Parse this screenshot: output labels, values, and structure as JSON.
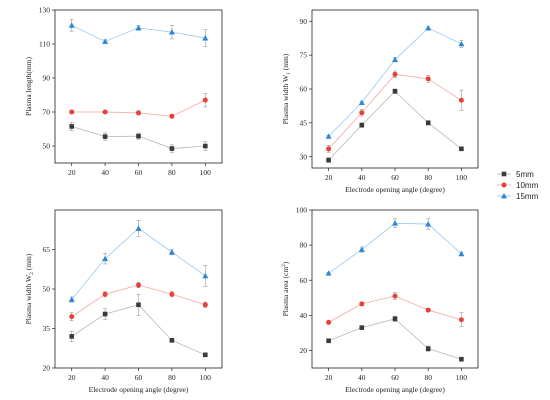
{
  "legend": {
    "items": [
      {
        "label": "5mm",
        "color": "#3a3a3a",
        "marker": "square"
      },
      {
        "label": "10mm",
        "color": "#e8413a",
        "marker": "circle"
      },
      {
        "label": "15mm",
        "color": "#2a86d9",
        "marker": "triangle"
      }
    ]
  },
  "chart_data": [
    {
      "type": "line",
      "xlabel": "",
      "ylabel": "Plasma length(mm)",
      "ylabel_sub": "",
      "ylabel_sup": "",
      "ylabel_suffix": "",
      "x": [
        20,
        40,
        60,
        80,
        100
      ],
      "xlim": [
        10,
        110
      ],
      "ylim": [
        40,
        130
      ],
      "yticks": [
        50,
        70,
        90,
        110,
        130
      ],
      "series": [
        {
          "name": "5mm",
          "values": [
            61.5,
            55.5,
            55.8,
            48.5,
            50.0
          ],
          "errors": [
            2.5,
            2.2,
            1.8,
            2.2,
            2.5
          ]
        },
        {
          "name": "10mm",
          "values": [
            70.0,
            70.0,
            69.5,
            67.5,
            77.0
          ],
          "errors": [
            1.0,
            1.0,
            1.2,
            1.0,
            4.0
          ]
        },
        {
          "name": "15mm",
          "values": [
            121.0,
            111.5,
            119.5,
            117.0,
            113.5
          ],
          "errors": [
            3.5,
            1.0,
            1.5,
            4.0,
            5.0
          ]
        }
      ]
    },
    {
      "type": "line",
      "xlabel": "Electrode opening angle (degree)",
      "ylabel": "Plasma width W",
      "ylabel_sub": "1",
      "ylabel_sup": "",
      "ylabel_suffix": " (mm)",
      "x": [
        20,
        40,
        60,
        80,
        100
      ],
      "xlim": [
        10,
        110
      ],
      "ylim": [
        25,
        95
      ],
      "yticks": [
        30,
        45,
        60,
        75,
        90
      ],
      "series": [
        {
          "name": "5mm",
          "values": [
            28.5,
            44.0,
            59.0,
            45.0,
            33.5
          ],
          "errors": [
            1.0,
            1.0,
            1.0,
            1.0,
            0.5
          ]
        },
        {
          "name": "10mm",
          "values": [
            33.5,
            49.5,
            66.5,
            64.5,
            55.0
          ],
          "errors": [
            1.5,
            1.5,
            1.5,
            1.5,
            4.5
          ]
        },
        {
          "name": "15mm",
          "values": [
            39.0,
            54.0,
            73.0,
            87.0,
            80.0
          ],
          "errors": [
            0.5,
            0.5,
            1.0,
            0.5,
            1.5
          ]
        }
      ]
    },
    {
      "type": "line",
      "xlabel": "Electrode opening angle (degree)",
      "ylabel": "Plasma width W",
      "ylabel_sub": "2",
      "ylabel_sup": "",
      "ylabel_suffix": " (mm)",
      "x": [
        20,
        40,
        60,
        80,
        100
      ],
      "xlim": [
        10,
        110
      ],
      "ylim": [
        20,
        80
      ],
      "yticks": [
        20,
        35,
        50,
        65
      ],
      "series": [
        {
          "name": "5mm",
          "values": [
            32.0,
            40.5,
            44.0,
            30.5,
            25.0
          ],
          "errors": [
            2.0,
            2.0,
            4.0,
            0.5,
            0.5
          ]
        },
        {
          "name": "10mm",
          "values": [
            39.5,
            48.0,
            51.5,
            48.0,
            44.0
          ],
          "errors": [
            1.5,
            1.0,
            1.0,
            1.0,
            1.0
          ]
        },
        {
          "name": "15mm",
          "values": [
            46.0,
            61.5,
            73.0,
            64.0,
            55.0
          ],
          "errors": [
            1.0,
            2.0,
            3.0,
            1.0,
            4.0
          ]
        }
      ]
    },
    {
      "type": "line",
      "xlabel": "Electrode opening angle (degree)",
      "ylabel": "Plasma area (cm",
      "ylabel_sub": "",
      "ylabel_sup": "2",
      "ylabel_suffix": ")",
      "x": [
        20,
        40,
        60,
        80,
        100
      ],
      "xlim": [
        10,
        110
      ],
      "ylim": [
        10,
        100
      ],
      "yticks": [
        20,
        40,
        60,
        80,
        100
      ],
      "series": [
        {
          "name": "5mm",
          "values": [
            25.5,
            33.0,
            38.0,
            21.0,
            15.0
          ],
          "errors": [
            1.0,
            1.0,
            1.5,
            1.5,
            0.5
          ]
        },
        {
          "name": "10mm",
          "values": [
            36.0,
            46.5,
            51.0,
            43.0,
            37.5
          ],
          "errors": [
            1.0,
            1.0,
            2.0,
            1.0,
            4.0
          ]
        },
        {
          "name": "15mm",
          "values": [
            64.0,
            77.5,
            92.5,
            92.0,
            75.0
          ],
          "errors": [
            0.5,
            1.5,
            2.5,
            3.0,
            1.0
          ]
        }
      ]
    }
  ]
}
